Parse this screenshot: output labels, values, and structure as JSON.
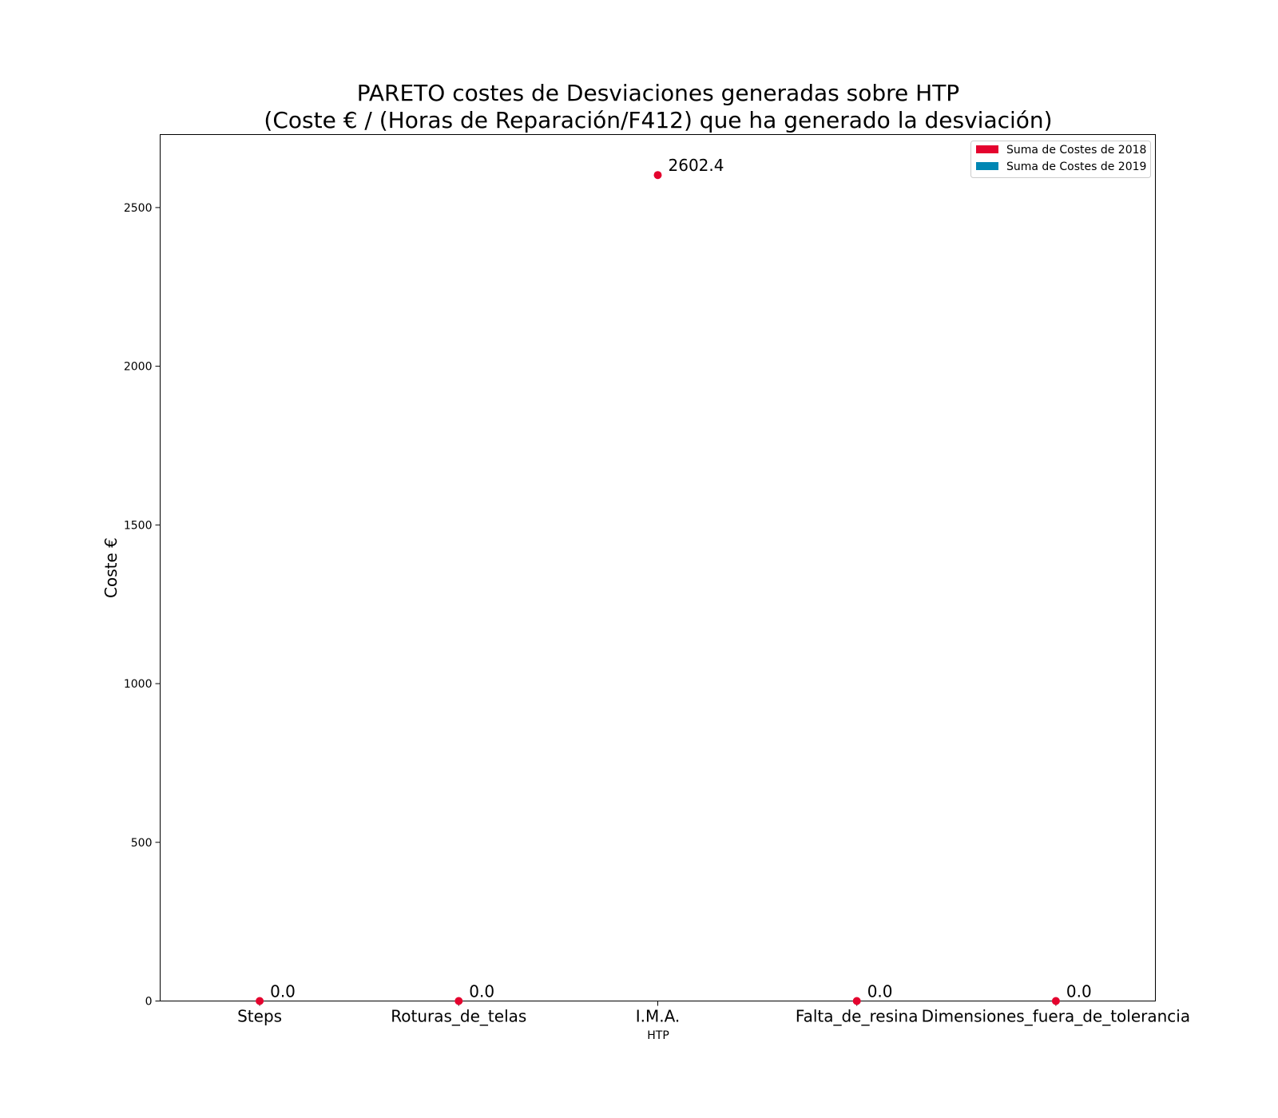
{
  "chart_data": {
    "type": "scatter",
    "title_line1": "PARETO costes de Desviaciones  generadas  sobre HTP",
    "title_line2": "(Coste € / (Horas de Reparación/F412) que ha generado la desviación)",
    "xlabel": "HTP",
    "ylabel": "Coste €",
    "ylim": [
      0,
      2730
    ],
    "yticks": [
      0,
      500,
      1000,
      1500,
      2000,
      2500
    ],
    "categories": [
      "Steps",
      "Roturas_de_telas",
      "I.M.A.",
      "Falta_de_resina",
      "Dimensiones_fuera_de_tolerancia"
    ],
    "series": [
      {
        "name": "Suma de Costes de 2018",
        "color": "#e4032e",
        "values": [
          0.0,
          0.0,
          2602.4,
          0.0,
          0.0
        ],
        "labels": [
          "0.0",
          "0.0",
          "2602.4",
          "0.0",
          "0.0"
        ]
      },
      {
        "name": "Suma de Costes de 2019",
        "color": "#0086b3",
        "values": []
      }
    ],
    "grid": false,
    "legend_position": "top-right"
  }
}
